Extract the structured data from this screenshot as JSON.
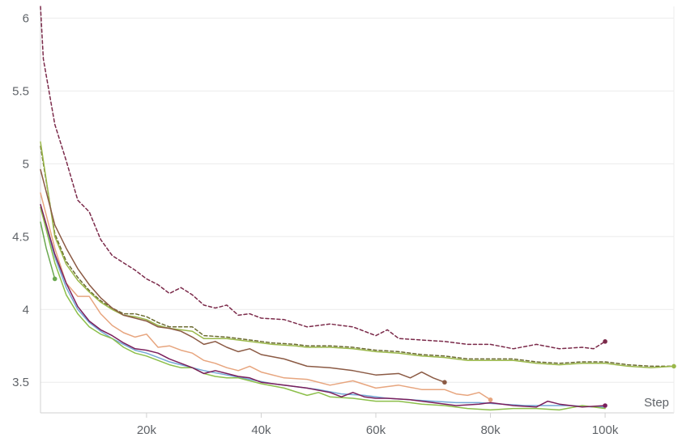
{
  "chart_data": {
    "type": "line",
    "xlabel": "Step",
    "ylabel": "",
    "xlim": [
      1500,
      112000
    ],
    "ylim": [
      3.29,
      6.08
    ],
    "x_ticks": [
      20000,
      40000,
      60000,
      80000,
      100000
    ],
    "x_tick_labels": [
      "20k",
      "40k",
      "60k",
      "80k",
      "100k"
    ],
    "y_ticks": [
      3.5,
      4,
      4.5,
      5,
      5.5,
      6
    ],
    "y_tick_labels": [
      "3.5",
      "4",
      "4.5",
      "5",
      "5.5",
      "6"
    ],
    "grid": true,
    "legend": "none",
    "series": [
      {
        "color": "#7b2a4a",
        "dashed": true,
        "end_dot": true,
        "x": [
          1500,
          2000,
          4000,
          6000,
          8000,
          10000,
          12000,
          14000,
          16000,
          18000,
          20000,
          22000,
          24000,
          26000,
          28000,
          30000,
          32000,
          34000,
          36000,
          38000,
          40000,
          44000,
          48000,
          52000,
          56000,
          60000,
          62000,
          64000,
          68000,
          72000,
          76000,
          80000,
          84000,
          88000,
          92000,
          96000,
          98000,
          100000
        ],
        "values": [
          6.08,
          5.72,
          5.27,
          5.02,
          4.75,
          4.67,
          4.48,
          4.37,
          4.32,
          4.27,
          4.21,
          4.17,
          4.11,
          4.15,
          4.1,
          4.03,
          4.01,
          4.03,
          3.96,
          3.97,
          3.94,
          3.93,
          3.88,
          3.9,
          3.88,
          3.82,
          3.86,
          3.8,
          3.79,
          3.78,
          3.76,
          3.76,
          3.73,
          3.76,
          3.73,
          3.74,
          3.73,
          3.78
        ]
      },
      {
        "color": "#6b6b30",
        "dashed": true,
        "end_dot": false,
        "x": [
          1500,
          4000,
          6000,
          8000,
          10000,
          12000,
          14000,
          16000,
          18000,
          20000,
          22000,
          24000,
          26000,
          28000,
          30000,
          34000,
          38000,
          42000,
          46000,
          48000,
          52000,
          56000,
          60000,
          64000,
          68000,
          72000,
          76000,
          80000,
          84000,
          88000,
          92000,
          96000,
          100000,
          104000,
          108000,
          112000
        ],
        "values": [
          5.12,
          4.52,
          4.33,
          4.22,
          4.13,
          4.06,
          4.01,
          3.97,
          3.97,
          3.95,
          3.91,
          3.88,
          3.88,
          3.88,
          3.82,
          3.81,
          3.79,
          3.77,
          3.76,
          3.75,
          3.75,
          3.74,
          3.72,
          3.71,
          3.69,
          3.68,
          3.66,
          3.66,
          3.66,
          3.64,
          3.63,
          3.64,
          3.64,
          3.62,
          3.61,
          3.61
        ]
      },
      {
        "color": "#9ab84a",
        "dashed": false,
        "end_dot": true,
        "x": [
          1500,
          4000,
          6000,
          8000,
          10000,
          12000,
          14000,
          16000,
          18000,
          20000,
          22000,
          24000,
          26000,
          28000,
          30000,
          34000,
          38000,
          42000,
          46000,
          48000,
          52000,
          56000,
          60000,
          64000,
          68000,
          72000,
          76000,
          80000,
          84000,
          88000,
          92000,
          96000,
          100000,
          104000,
          108000,
          112000
        ],
        "values": [
          5.15,
          4.5,
          4.31,
          4.2,
          4.12,
          4.05,
          4.0,
          3.96,
          3.95,
          3.93,
          3.89,
          3.87,
          3.86,
          3.85,
          3.8,
          3.8,
          3.78,
          3.76,
          3.75,
          3.74,
          3.74,
          3.73,
          3.71,
          3.7,
          3.68,
          3.67,
          3.65,
          3.65,
          3.65,
          3.63,
          3.62,
          3.63,
          3.63,
          3.61,
          3.6,
          3.61
        ]
      },
      {
        "color": "#8b5a44",
        "dashed": false,
        "end_dot": true,
        "x": [
          1500,
          4000,
          6000,
          8000,
          10000,
          12000,
          14000,
          16000,
          18000,
          20000,
          22000,
          24000,
          26000,
          28000,
          30000,
          32000,
          34000,
          36000,
          38000,
          40000,
          44000,
          48000,
          52000,
          56000,
          60000,
          64000,
          66000,
          68000,
          70000,
          72000
        ],
        "values": [
          4.96,
          4.58,
          4.42,
          4.28,
          4.17,
          4.08,
          4.01,
          3.96,
          3.94,
          3.92,
          3.88,
          3.87,
          3.85,
          3.81,
          3.76,
          3.78,
          3.74,
          3.71,
          3.73,
          3.69,
          3.66,
          3.61,
          3.6,
          3.58,
          3.55,
          3.56,
          3.53,
          3.57,
          3.53,
          3.5
        ]
      },
      {
        "color": "#e7a57e",
        "dashed": false,
        "end_dot": true,
        "x": [
          1500,
          4000,
          6000,
          8000,
          10000,
          12000,
          14000,
          16000,
          18000,
          20000,
          22000,
          24000,
          26000,
          28000,
          30000,
          32000,
          34000,
          36000,
          38000,
          40000,
          44000,
          48000,
          52000,
          56000,
          60000,
          64000,
          68000,
          72000,
          74000,
          76000,
          78000,
          80000
        ],
        "values": [
          4.8,
          4.42,
          4.18,
          4.09,
          4.09,
          3.97,
          3.89,
          3.84,
          3.81,
          3.83,
          3.74,
          3.75,
          3.72,
          3.7,
          3.65,
          3.63,
          3.6,
          3.58,
          3.61,
          3.57,
          3.53,
          3.52,
          3.48,
          3.51,
          3.46,
          3.48,
          3.45,
          3.45,
          3.42,
          3.41,
          3.43,
          3.38
        ]
      },
      {
        "color": "#74a9d6",
        "dashed": false,
        "end_dot": false,
        "x": [
          1500,
          4000,
          6000,
          8000,
          10000,
          12000,
          14000,
          16000,
          18000,
          20000,
          22000,
          24000,
          26000,
          28000,
          30000,
          34000,
          38000,
          42000,
          46000,
          50000,
          54000,
          58000,
          62000,
          66000,
          70000,
          74000,
          78000,
          82000,
          86000,
          90000,
          94000,
          98000,
          100000
        ],
        "values": [
          4.7,
          4.36,
          4.15,
          4.0,
          3.91,
          3.85,
          3.8,
          3.76,
          3.72,
          3.7,
          3.67,
          3.64,
          3.62,
          3.6,
          3.58,
          3.55,
          3.52,
          3.49,
          3.47,
          3.45,
          3.42,
          3.41,
          3.39,
          3.38,
          3.37,
          3.36,
          3.36,
          3.35,
          3.34,
          3.34,
          3.34,
          3.33,
          3.33
        ]
      },
      {
        "color": "#6aa84f",
        "dashed": false,
        "end_dot": true,
        "x": [
          1500,
          2500,
          3500,
          4000
        ],
        "values": [
          4.6,
          4.42,
          4.28,
          4.21
        ]
      },
      {
        "color": "#8cbf4a",
        "dashed": false,
        "end_dot": false,
        "x": [
          1500,
          4000,
          6000,
          8000,
          10000,
          12000,
          14000,
          16000,
          18000,
          20000,
          22000,
          24000,
          26000,
          28000,
          30000,
          32000,
          34000,
          36000,
          38000,
          40000,
          44000,
          48000,
          50000,
          52000,
          56000,
          60000,
          64000,
          68000,
          72000,
          76000,
          80000,
          84000,
          88000,
          92000,
          96000,
          100000
        ],
        "values": [
          4.7,
          4.32,
          4.1,
          3.97,
          3.88,
          3.83,
          3.8,
          3.74,
          3.7,
          3.68,
          3.65,
          3.62,
          3.6,
          3.6,
          3.56,
          3.54,
          3.53,
          3.53,
          3.51,
          3.49,
          3.46,
          3.41,
          3.43,
          3.4,
          3.39,
          3.37,
          3.37,
          3.35,
          3.34,
          3.32,
          3.31,
          3.32,
          3.32,
          3.31,
          3.34,
          3.32
        ]
      },
      {
        "color": "#7a1f5c",
        "dashed": false,
        "end_dot": true,
        "x": [
          1500,
          4000,
          6000,
          8000,
          10000,
          12000,
          14000,
          16000,
          18000,
          20000,
          22000,
          24000,
          26000,
          28000,
          30000,
          32000,
          34000,
          36000,
          38000,
          40000,
          44000,
          48000,
          52000,
          54000,
          56000,
          58000,
          60000,
          62000,
          66000,
          70000,
          74000,
          78000,
          80000,
          84000,
          88000,
          90000,
          92000,
          96000,
          100000
        ],
        "values": [
          4.72,
          4.38,
          4.18,
          4.02,
          3.92,
          3.86,
          3.82,
          3.77,
          3.73,
          3.72,
          3.7,
          3.66,
          3.63,
          3.6,
          3.56,
          3.58,
          3.56,
          3.54,
          3.53,
          3.5,
          3.48,
          3.46,
          3.43,
          3.4,
          3.43,
          3.4,
          3.39,
          3.39,
          3.38,
          3.36,
          3.34,
          3.35,
          3.36,
          3.34,
          3.33,
          3.37,
          3.35,
          3.33,
          3.34
        ]
      }
    ]
  }
}
